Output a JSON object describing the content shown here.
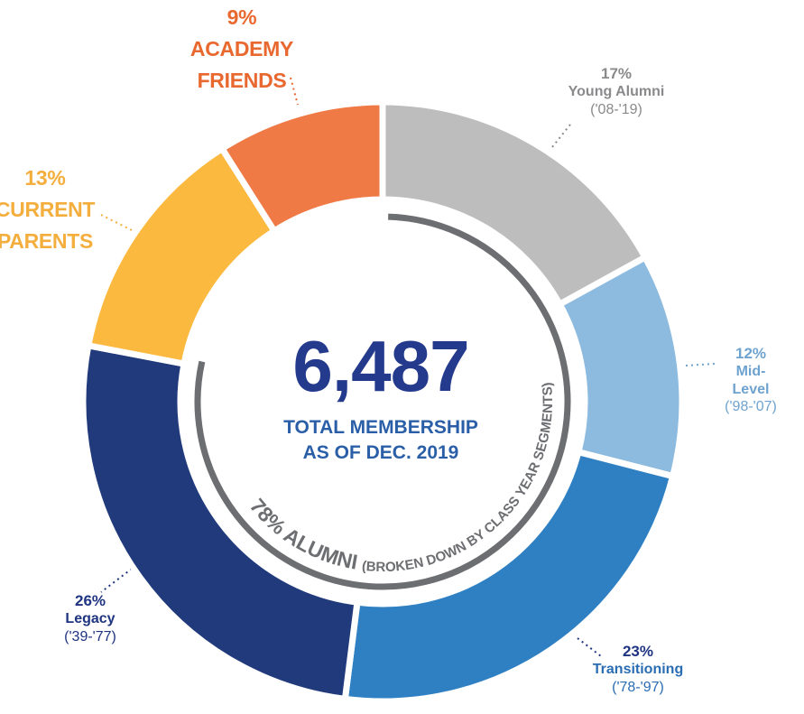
{
  "chart_data": {
    "type": "donut",
    "categories": [
      "Young Alumni",
      "Mid-Level",
      "Transitioning",
      "Legacy",
      "CURRENT PARENTS",
      "ACADEMY FRIENDS"
    ],
    "subcategories": [
      "('08-'19)",
      "('98-'07)",
      "('78-'97)",
      "('39-'77)",
      null,
      null
    ],
    "values": [
      17,
      12,
      23,
      26,
      13,
      9
    ],
    "value_labels": [
      "17%",
      "12%",
      "23%",
      "26%",
      "13%",
      "9%"
    ],
    "colors": [
      "#bdbdbe",
      "#8dbbdf",
      "#2f80c3",
      "#203a7c",
      "#fbb93f",
      "#f07a45"
    ],
    "label_colors": [
      "#8a8a8c",
      "#6fa3cf",
      "#2a6db3",
      "#1e3480",
      "#f4ae3d",
      "#e8682f"
    ],
    "total": {
      "value": 6487,
      "label": "6,487"
    },
    "subtitle": "TOTAL MEMBERSHIP AS OF DEC. 2019",
    "alumni": {
      "value": 78,
      "label": "78% ALUMNI",
      "note": "(BROKEN DOWN BY CLASS YEAR SEGMENTS)"
    }
  }
}
